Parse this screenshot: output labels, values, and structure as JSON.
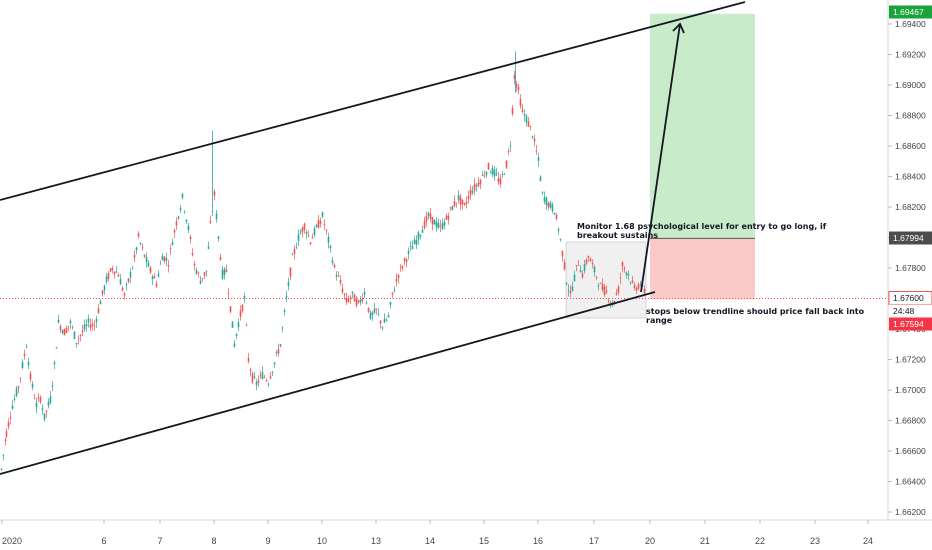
{
  "chart_data": {
    "type": "candlestick",
    "price_axis": {
      "ticks": [
        "1.69400",
        "1.69200",
        "1.69000",
        "1.68800",
        "1.68600",
        "1.68400",
        "1.68200",
        "1.68000",
        "1.67800",
        "1.67600",
        "1.67400",
        "1.67200",
        "1.67000",
        "1.66800",
        "1.66600",
        "1.66400",
        "1.66200"
      ],
      "range": [
        1.6611,
        1.6955
      ]
    },
    "time_axis": {
      "ticks": [
        "2020",
        "6",
        "7",
        "8",
        "9",
        "10",
        "13",
        "14",
        "15",
        "16",
        "17",
        "20",
        "21",
        "22",
        "23",
        "24"
      ]
    },
    "price_labels": {
      "target": "1.69467",
      "entry": "1.67994",
      "current": "1.67600",
      "countdown": "24:48",
      "stop": "1.67594"
    },
    "ohlc_path": [
      [
        1,
        1.6648
      ],
      [
        6,
        1.6672
      ],
      [
        12,
        1.669
      ],
      [
        18,
        1.6702
      ],
      [
        22,
        1.6716
      ],
      [
        26,
        1.673
      ],
      [
        30,
        1.6708
      ],
      [
        36,
        1.669
      ],
      [
        40,
        1.6695
      ],
      [
        44,
        1.6682
      ],
      [
        50,
        1.6694
      ],
      [
        54,
        1.6716
      ],
      [
        58,
        1.6744
      ],
      [
        64,
        1.6738
      ],
      [
        70,
        1.6744
      ],
      [
        76,
        1.6732
      ],
      [
        82,
        1.6738
      ],
      [
        88,
        1.6744
      ],
      [
        94,
        1.6742
      ],
      [
        100,
        1.6758
      ],
      [
        106,
        1.6772
      ],
      [
        112,
        1.678
      ],
      [
        118,
        1.6776
      ],
      [
        124,
        1.6762
      ],
      [
        130,
        1.6776
      ],
      [
        134,
        1.6786
      ],
      [
        138,
        1.68
      ],
      [
        144,
        1.6788
      ],
      [
        150,
        1.6778
      ],
      [
        156,
        1.677
      ],
      [
        162,
        1.6788
      ],
      [
        168,
        1.6784
      ],
      [
        172,
        1.6798
      ],
      [
        176,
        1.681
      ],
      [
        182,
        1.6826
      ],
      [
        188,
        1.6806
      ],
      [
        194,
        1.6782
      ],
      [
        200,
        1.6772
      ],
      [
        206,
        1.6778
      ],
      [
        210,
        1.6808
      ],
      [
        214,
        1.6828
      ],
      [
        218,
        1.68
      ],
      [
        222,
        1.6776
      ],
      [
        226,
        1.6778
      ],
      [
        230,
        1.6754
      ],
      [
        234,
        1.673
      ],
      [
        238,
        1.6744
      ],
      [
        244,
        1.676
      ],
      [
        248,
        1.672
      ],
      [
        252,
        1.6708
      ],
      [
        256,
        1.6704
      ],
      [
        262,
        1.671
      ],
      [
        268,
        1.6706
      ],
      [
        274,
        1.6718
      ],
      [
        280,
        1.673
      ],
      [
        286,
        1.676
      ],
      [
        292,
        1.6786
      ],
      [
        298,
        1.68
      ],
      [
        304,
        1.6808
      ],
      [
        310,
        1.6798
      ],
      [
        316,
        1.6806
      ],
      [
        322,
        1.6814
      ],
      [
        328,
        1.6798
      ],
      [
        334,
        1.678
      ],
      [
        340,
        1.677
      ],
      [
        346,
        1.6758
      ],
      [
        352,
        1.6762
      ],
      [
        358,
        1.6756
      ],
      [
        364,
        1.6764
      ],
      [
        370,
        1.6748
      ],
      [
        376,
        1.6752
      ],
      [
        382,
        1.6742
      ],
      [
        388,
        1.6748
      ],
      [
        392,
        1.6762
      ],
      [
        398,
        1.6776
      ],
      [
        404,
        1.6784
      ],
      [
        410,
        1.6792
      ],
      [
        416,
        1.6798
      ],
      [
        422,
        1.6806
      ],
      [
        428,
        1.6814
      ],
      [
        434,
        1.681
      ],
      [
        440,
        1.6806
      ],
      [
        446,
        1.6812
      ],
      [
        452,
        1.682
      ],
      [
        458,
        1.6826
      ],
      [
        464,
        1.682
      ],
      [
        470,
        1.683
      ],
      [
        476,
        1.6834
      ],
      [
        482,
        1.684
      ],
      [
        488,
        1.6846
      ],
      [
        494,
        1.6842
      ],
      [
        500,
        1.6836
      ],
      [
        506,
        1.6848
      ],
      [
        510,
        1.6862
      ],
      [
        514,
        1.6906
      ],
      [
        518,
        1.6896
      ],
      [
        522,
        1.6882
      ],
      [
        526,
        1.6878
      ],
      [
        532,
        1.6868
      ],
      [
        538,
        1.685
      ],
      [
        542,
        1.6828
      ],
      [
        548,
        1.6822
      ],
      [
        554,
        1.6818
      ],
      [
        558,
        1.6806
      ],
      [
        562,
        1.679
      ],
      [
        566,
        1.6772
      ],
      [
        570,
        1.6762
      ],
      [
        574,
        1.6774
      ],
      [
        578,
        1.6784
      ],
      [
        582,
        1.6776
      ],
      [
        588,
        1.6788
      ],
      [
        594,
        1.6778
      ],
      [
        600,
        1.6768
      ],
      [
        606,
        1.6764
      ],
      [
        612,
        1.6756
      ],
      [
        618,
        1.6766
      ],
      [
        622,
        1.6782
      ],
      [
        628,
        1.6776
      ],
      [
        634,
        1.6766
      ],
      [
        640,
        1.677
      ],
      [
        646,
        1.6762
      ]
    ]
  },
  "annotations": {
    "entry_note": "Monitor 1.68 psychological level for entry to go long, if breakout sustains",
    "stop_note": "stops below trendline should price fall back into range"
  },
  "colors": {
    "up": "#26a69a",
    "down": "#ef5350",
    "target_zone": "#c8ebc9",
    "stop_zone": "#fcc9c9",
    "range_box": "#e6e6e6",
    "target_label": "#1aa33a",
    "stop_label": "#f23645",
    "current_line": "#ef5350",
    "entry_label": "#4c4c4c",
    "axis_text": "#444444"
  }
}
